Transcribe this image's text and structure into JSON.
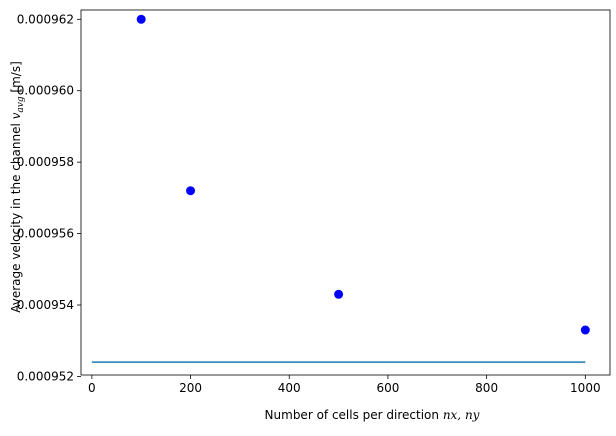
{
  "chart_data": {
    "type": "scatter",
    "title": "",
    "xlabel_main": "Number of cells per direction ",
    "xlabel_math": "nx, ny",
    "ylabel_main": "Average velocity in the channel ",
    "ylabel_math_base": "v",
    "ylabel_math_sub": "avg",
    "ylabel_unit": " [m/s]",
    "xlim": [
      -22,
      1050
    ],
    "ylim": [
      0.00095204,
      0.00096226
    ],
    "xticks": [
      0,
      200,
      400,
      600,
      800,
      1000
    ],
    "xtick_labels": [
      "0",
      "200",
      "400",
      "600",
      "800",
      "1000"
    ],
    "yticks": [
      0.000952,
      0.000954,
      0.000956,
      0.000958,
      0.00096,
      0.000962
    ],
    "ytick_labels": [
      "0.000952",
      "0.000954",
      "0.000956",
      "0.000958",
      "0.000960",
      "0.000962"
    ],
    "grid": false,
    "legend": "none",
    "series": [
      {
        "kind": "points",
        "color": "#0000ff",
        "x": [
          100,
          200,
          500,
          1000
        ],
        "y": [
          0.000962,
          0.0009572,
          0.0009543,
          0.0009533
        ]
      },
      {
        "kind": "line",
        "color": "#1f77b4",
        "x": [
          0,
          1000
        ],
        "y": [
          0.0009524,
          0.0009524
        ]
      }
    ]
  }
}
